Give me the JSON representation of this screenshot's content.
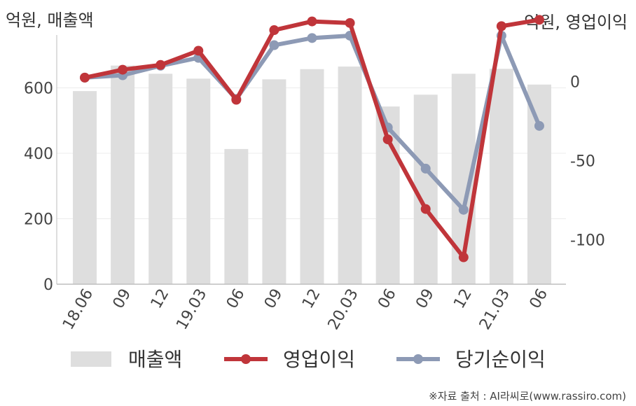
{
  "chart_data": {
    "type": "bar+line",
    "categories": [
      "18.06",
      "09",
      "12",
      "19.03",
      "06",
      "09",
      "12",
      "20.03",
      "06",
      "09",
      "12",
      "21.03",
      "06"
    ],
    "left_axis": {
      "unit_label": "억원, 매출액",
      "ticks": [
        0,
        200,
        400,
        600
      ],
      "range": [
        0,
        740
      ]
    },
    "right_axis": {
      "unit_label": "억원, 영업이익",
      "ticks": [
        0,
        -50,
        -100
      ],
      "range": [
        -128,
        25
      ]
    },
    "series": [
      {
        "name": "매출액",
        "kind": "bar",
        "axis": "left",
        "color": "#dedede",
        "values": [
          590,
          668,
          643,
          628,
          413,
          626,
          657,
          665,
          543,
          579,
          643,
          658,
          610
        ]
      },
      {
        "name": "영업이익",
        "kind": "line",
        "axis": "right",
        "color": "#c0353a",
        "values": [
          2.5,
          7.5,
          10.5,
          19.5,
          -11.5,
          32.5,
          38,
          37,
          -36.5,
          -80.5,
          -111,
          35,
          39
        ]
      },
      {
        "name": "당기순이익",
        "kind": "line",
        "axis": "right",
        "color": "#8d9ab5",
        "values": [
          2.5,
          4,
          10,
          15,
          -11,
          23,
          27.5,
          29,
          -29,
          -55,
          -81,
          29,
          -28
        ]
      }
    ],
    "legend_position": "bottom",
    "grid": true,
    "source": "※자료 출처 : AI라씨로(www.rassiro.com)"
  }
}
